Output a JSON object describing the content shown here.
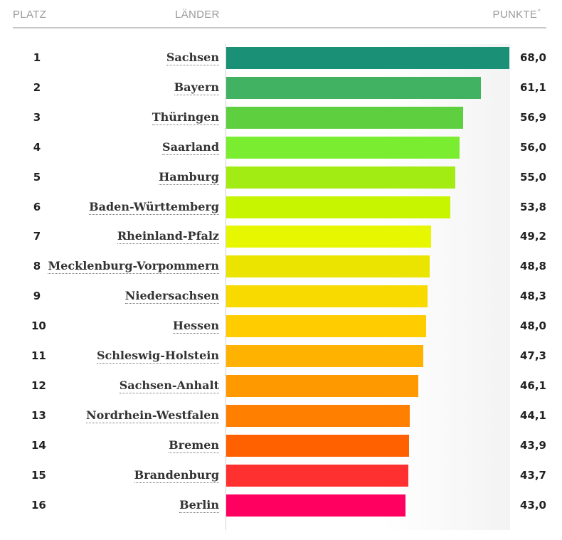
{
  "header": {
    "rank": "PLATZ",
    "country": "LÄNDER",
    "points": "PUNKTE",
    "points_mark": "*"
  },
  "chart_data": {
    "type": "bar",
    "orientation": "horizontal",
    "xlim": [
      0,
      68.0
    ],
    "categories": [
      "Sachsen",
      "Bayern",
      "Thüringen",
      "Saarland",
      "Hamburg",
      "Baden-Württemberg",
      "Rheinland-Pfalz",
      "Mecklenburg-Vorpommern",
      "Niedersachsen",
      "Hessen",
      "Schleswig-Holstein",
      "Sachsen-Anhalt",
      "Nordrhein-Westfalen",
      "Bremen",
      "Brandenburg",
      "Berlin"
    ],
    "ranks": [
      "1",
      "2",
      "3",
      "4",
      "5",
      "6",
      "7",
      "8",
      "9",
      "10",
      "11",
      "12",
      "13",
      "14",
      "15",
      "16"
    ],
    "values": [
      68.0,
      61.1,
      56.9,
      56.0,
      55.0,
      53.8,
      49.2,
      48.8,
      48.3,
      48.0,
      47.3,
      46.1,
      44.1,
      43.9,
      43.7,
      43.0
    ],
    "value_labels": [
      "68,0",
      "61,1",
      "56,9",
      "56,0",
      "55,0",
      "53,8",
      "49,2",
      "48,8",
      "48,3",
      "48,0",
      "47,3",
      "46,1",
      "44,1",
      "43,9",
      "43,7",
      "43,0"
    ],
    "colors": [
      "#1a9176",
      "#40b262",
      "#5ed040",
      "#7bed31",
      "#a3ec13",
      "#c7f500",
      "#e6f700",
      "#ebe400",
      "#f8da00",
      "#ffcc00",
      "#ffb300",
      "#ff9900",
      "#ff8000",
      "#ff6000",
      "#ff3030",
      "#ff0060"
    ]
  }
}
